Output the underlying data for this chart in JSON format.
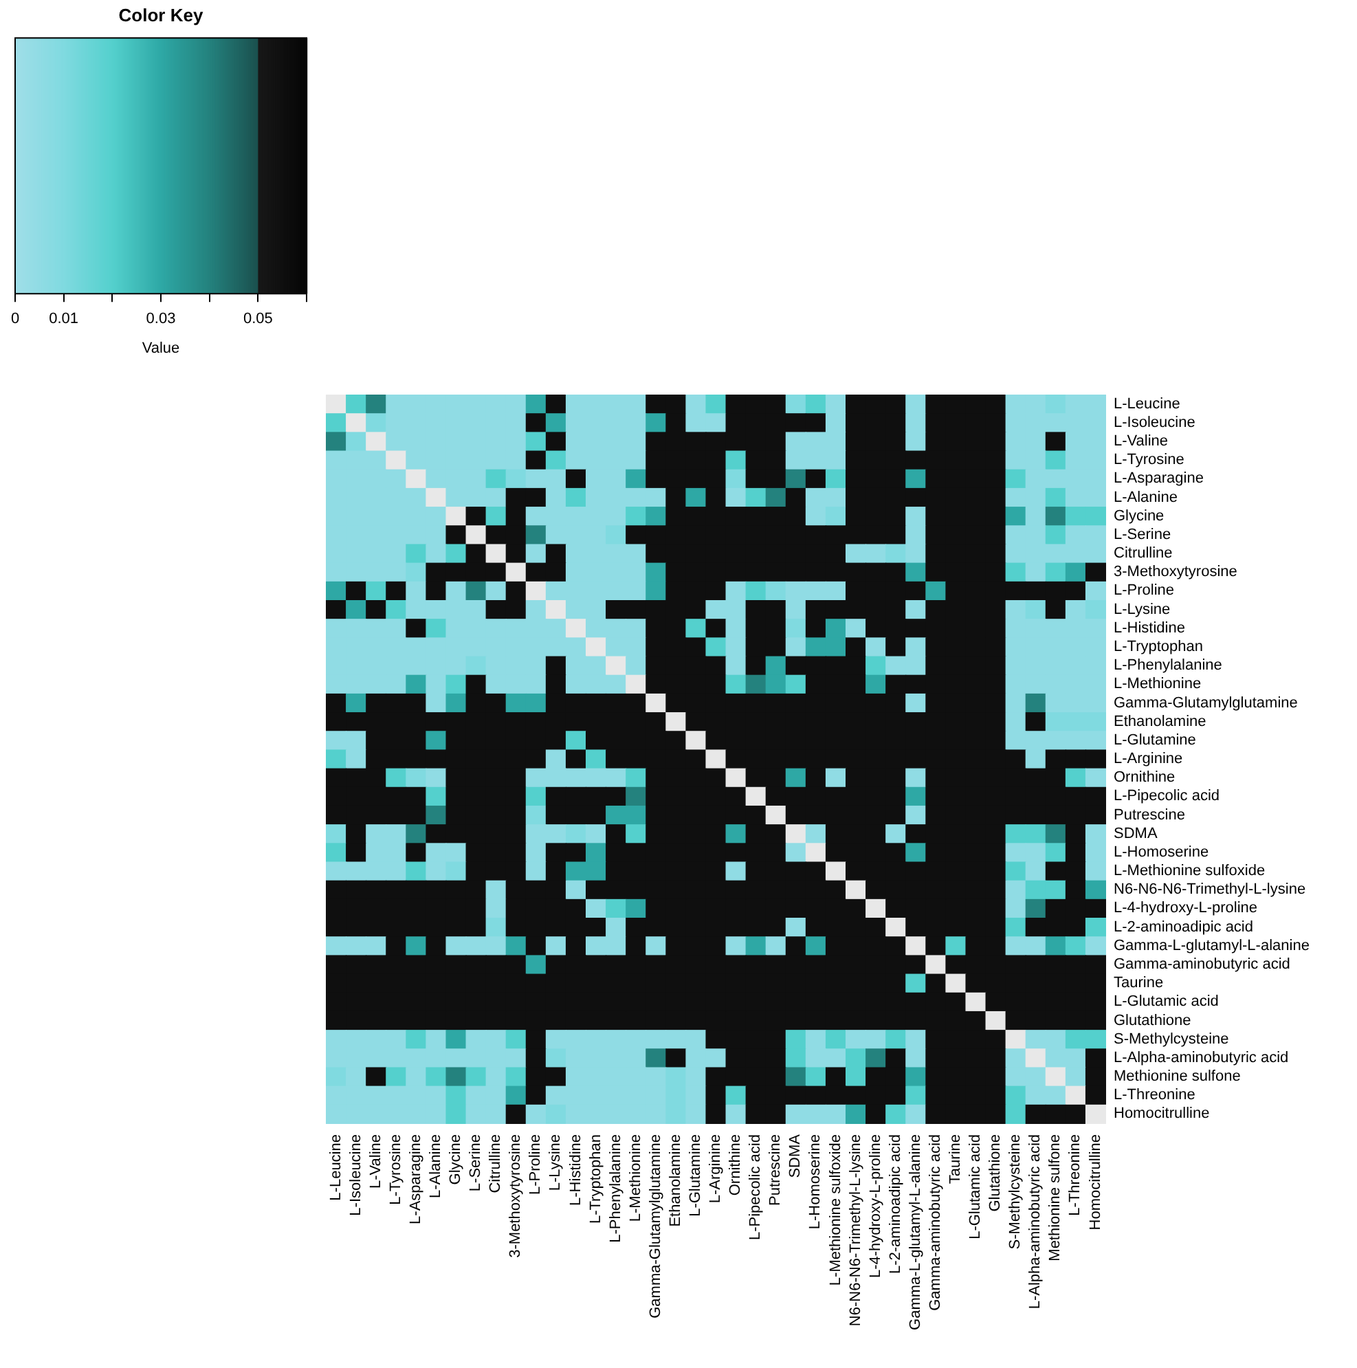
{
  "chart_data": {
    "type": "heatmap",
    "legend_title": "Color Key",
    "clabel": "Value",
    "clim": [
      0,
      0.06
    ],
    "cticks": [
      0,
      0.01,
      {
        "value": 0.02,
        "label": null
      },
      0.03,
      {
        "value": 0.04,
        "label": null
      },
      0.05,
      {
        "value": 0.06,
        "label": null
      }
    ],
    "categories": [
      "L-Leucine",
      "L-Isoleucine",
      "L-Valine",
      "L-Tyrosine",
      "L-Asparagine",
      "L-Alanine",
      "Glycine",
      "L-Serine",
      "Citrulline",
      "3-Methoxytyrosine",
      "L-Proline",
      "L-Lysine",
      "L-Histidine",
      "L-Tryptophan",
      "L-Phenylalanine",
      "L-Methionine",
      "Gamma-Glutamylglutamine",
      "Ethanolamine",
      "L-Glutamine",
      "L-Arginine",
      "Ornithine",
      "L-Pipecolic acid",
      "Putrescine",
      "SDMA",
      "L-Homoserine",
      "L-Methionine sulfoxide",
      "N6-N6-N6-Trimethyl-L-lysine",
      "L-4-hydroxy-L-proline",
      "L-2-aminoadipic acid",
      "Gamma-L-glutamyl-L-alanine",
      "Gamma-aminobutyric acid",
      "Taurine",
      "L-Glutamic acid",
      "Glutathione",
      "S-Methylcysteine",
      "L-Alpha-aminobutyric acid",
      "Methionine sulfone",
      "L-Threonine",
      "Homocitrulline"
    ],
    "y_categories": [
      "L-Leucine",
      "L-Isoleucine",
      "L-Valine",
      "L-Tyrosine",
      "L-Asparagine",
      "L-Alanine",
      "Glycine",
      "L-Serine",
      "Citrulline",
      "3-Methoxytyrosine",
      "L-Proline",
      "L-Lysine",
      "L-Histidine",
      "L-Tryptophan",
      "L-Phenylalanine",
      "L-Methionine",
      "Gamma-Glutamylglutamine",
      "Ethanolamine",
      "L-Glutamine",
      "L-Arginine",
      "Ornithine",
      "L-Pipecolic acid",
      "Putrescine",
      "SDMA",
      "L-Homoserine",
      "L-Methionine sulfoxide",
      "N6-N6-N6-Trimethyl-L-lysine",
      "L-4-hydroxy-L-proline",
      "L-2-aminoadipic acid",
      "Gamma-L-glutamyl-L-alanine",
      "Gamma-aminobutyric acid",
      "Taurine",
      "L-Glutamic acid",
      "Glutathione",
      "S-Methylcysteine",
      "L-Alpha-aminobutyric acid",
      "Methionine sulfone",
      "L-Threonine",
      "Homocitrulline"
    ],
    "cells": [
      [
        null,
        0.02,
        0.04,
        0.005,
        0.005,
        0.005,
        0.005,
        0.005,
        0.005,
        0.005,
        0.03,
        0.055,
        0.005,
        0.005,
        0.005,
        0.005,
        0.055,
        0.055,
        0.005,
        0.02,
        0.055,
        0.055,
        0.055,
        0.01,
        0.02,
        0.005,
        0.055,
        0.055,
        0.055,
        0.005,
        0.055,
        0.055,
        0.055,
        0.055,
        0.005,
        0.005,
        0.01,
        0.005,
        0.005
      ],
      [
        0.02,
        null,
        0.01,
        0.005,
        0.005,
        0.005,
        0.005,
        0.005,
        0.005,
        0.005,
        0.055,
        0.03,
        0.005,
        0.005,
        0.005,
        0.005,
        0.03,
        0.055,
        0.005,
        0.005,
        0.055,
        0.055,
        0.055,
        0.055,
        0.055,
        0.005,
        0.055,
        0.055,
        0.055,
        0.005,
        0.055,
        0.055,
        0.055,
        0.055,
        0.005,
        0.005,
        0.005,
        0.005,
        0.005
      ],
      [
        0.04,
        0.01,
        null,
        0.005,
        0.005,
        0.005,
        0.005,
        0.005,
        0.005,
        0.005,
        0.02,
        0.055,
        0.005,
        0.005,
        0.005,
        0.005,
        0.055,
        0.055,
        0.055,
        0.055,
        0.055,
        0.055,
        0.055,
        0.005,
        0.005,
        0.005,
        0.055,
        0.055,
        0.055,
        0.005,
        0.055,
        0.055,
        0.055,
        0.055,
        0.005,
        0.005,
        0.055,
        0.005,
        0.005
      ],
      [
        0.005,
        0.005,
        0.005,
        null,
        0.005,
        0.005,
        0.005,
        0.005,
        0.005,
        0.005,
        0.055,
        0.02,
        0.005,
        0.005,
        0.005,
        0.005,
        0.055,
        0.055,
        0.055,
        0.055,
        0.02,
        0.055,
        0.055,
        0.005,
        0.005,
        0.005,
        0.055,
        0.055,
        0.055,
        0.055,
        0.055,
        0.055,
        0.055,
        0.055,
        0.005,
        0.005,
        0.02,
        0.005,
        0.005
      ],
      [
        0.005,
        0.005,
        0.005,
        0.005,
        null,
        0.005,
        0.005,
        0.005,
        0.02,
        0.01,
        0.005,
        0.005,
        0.055,
        0.005,
        0.005,
        0.03,
        0.055,
        0.055,
        0.055,
        0.055,
        0.01,
        0.055,
        0.055,
        0.04,
        0.055,
        0.02,
        0.055,
        0.055,
        0.055,
        0.03,
        0.055,
        0.055,
        0.055,
        0.055,
        0.02,
        0.005,
        0.005,
        0.005,
        0.005
      ],
      [
        0.005,
        0.005,
        0.005,
        0.005,
        0.005,
        null,
        0.005,
        0.005,
        0.005,
        0.055,
        0.055,
        0.005,
        0.02,
        0.005,
        0.005,
        0.005,
        0.005,
        0.055,
        0.03,
        0.055,
        0.005,
        0.02,
        0.04,
        0.055,
        0.005,
        0.005,
        0.055,
        0.055,
        0.055,
        0.055,
        0.055,
        0.055,
        0.055,
        0.055,
        0.005,
        0.005,
        0.02,
        0.005,
        0.005
      ],
      [
        0.005,
        0.005,
        0.005,
        0.005,
        0.005,
        0.005,
        null,
        0.055,
        0.02,
        0.055,
        0.005,
        0.005,
        0.005,
        0.005,
        0.005,
        0.02,
        0.03,
        0.055,
        0.055,
        0.055,
        0.055,
        0.055,
        0.055,
        0.055,
        0.005,
        0.01,
        0.055,
        0.055,
        0.055,
        0.005,
        0.055,
        0.055,
        0.055,
        0.055,
        0.03,
        0.005,
        0.04,
        0.02,
        0.02
      ],
      [
        0.005,
        0.005,
        0.005,
        0.005,
        0.005,
        0.005,
        0.055,
        null,
        0.055,
        0.055,
        0.04,
        0.005,
        0.005,
        0.005,
        0.01,
        0.055,
        0.055,
        0.055,
        0.055,
        0.055,
        0.055,
        0.055,
        0.055,
        0.055,
        0.055,
        0.055,
        0.055,
        0.055,
        0.055,
        0.005,
        0.055,
        0.055,
        0.055,
        0.055,
        0.005,
        0.005,
        0.02,
        0.005,
        0.005
      ],
      [
        0.005,
        0.005,
        0.005,
        0.005,
        0.02,
        0.005,
        0.02,
        0.055,
        null,
        0.055,
        0.005,
        0.055,
        0.005,
        0.005,
        0.005,
        0.005,
        0.055,
        0.055,
        0.055,
        0.055,
        0.055,
        0.055,
        0.055,
        0.055,
        0.055,
        0.055,
        0.005,
        0.005,
        0.01,
        0.005,
        0.055,
        0.055,
        0.055,
        0.055,
        0.005,
        0.005,
        0.005,
        0.005,
        0.005
      ],
      [
        0.005,
        0.005,
        0.005,
        0.005,
        0.01,
        0.055,
        0.055,
        0.055,
        0.055,
        null,
        0.055,
        0.055,
        0.005,
        0.005,
        0.005,
        0.005,
        0.03,
        0.055,
        0.055,
        0.055,
        0.055,
        0.055,
        0.055,
        0.055,
        0.055,
        0.055,
        0.055,
        0.055,
        0.055,
        0.03,
        0.055,
        0.055,
        0.055,
        0.055,
        0.02,
        0.005,
        0.02,
        0.03,
        0.055
      ],
      [
        0.03,
        0.055,
        0.02,
        0.055,
        0.005,
        0.055,
        0.005,
        0.04,
        0.005,
        0.055,
        null,
        0.005,
        0.005,
        0.005,
        0.005,
        0.005,
        0.03,
        0.055,
        0.055,
        0.055,
        0.005,
        0.02,
        0.01,
        0.005,
        0.005,
        0.005,
        0.055,
        0.055,
        0.055,
        0.055,
        0.03,
        0.055,
        0.055,
        0.055,
        0.055,
        0.055,
        0.055,
        0.055,
        0.005
      ],
      [
        0.055,
        0.03,
        0.055,
        0.02,
        0.005,
        0.005,
        0.005,
        0.005,
        0.055,
        0.055,
        0.005,
        null,
        0.005,
        0.005,
        0.055,
        0.055,
        0.055,
        0.055,
        0.055,
        0.005,
        0.005,
        0.055,
        0.055,
        0.005,
        0.055,
        0.055,
        0.055,
        0.055,
        0.055,
        0.005,
        0.055,
        0.055,
        0.055,
        0.055,
        0.005,
        0.01,
        0.055,
        0.005,
        0.01
      ],
      [
        0.005,
        0.005,
        0.005,
        0.005,
        0.055,
        0.02,
        0.005,
        0.005,
        0.005,
        0.005,
        0.005,
        0.005,
        null,
        0.005,
        0.005,
        0.005,
        0.055,
        0.055,
        0.02,
        0.055,
        0.005,
        0.055,
        0.055,
        0.01,
        0.055,
        0.03,
        0.005,
        0.055,
        0.055,
        0.055,
        0.055,
        0.055,
        0.055,
        0.055,
        0.005,
        0.005,
        0.005,
        0.005,
        0.005
      ],
      [
        0.005,
        0.005,
        0.005,
        0.005,
        0.005,
        0.005,
        0.005,
        0.005,
        0.005,
        0.005,
        0.005,
        0.005,
        0.005,
        null,
        0.005,
        0.005,
        0.055,
        0.055,
        0.055,
        0.02,
        0.005,
        0.055,
        0.055,
        0.005,
        0.03,
        0.03,
        0.055,
        0.005,
        0.055,
        0.005,
        0.055,
        0.055,
        0.055,
        0.055,
        0.005,
        0.005,
        0.005,
        0.005,
        0.005
      ],
      [
        0.005,
        0.005,
        0.005,
        0.005,
        0.005,
        0.005,
        0.005,
        0.01,
        0.005,
        0.005,
        0.005,
        0.055,
        0.005,
        0.005,
        null,
        0.005,
        0.055,
        0.055,
        0.055,
        0.055,
        0.005,
        0.055,
        0.03,
        0.055,
        0.055,
        0.055,
        0.055,
        0.02,
        0.005,
        0.005,
        0.055,
        0.055,
        0.055,
        0.055,
        0.005,
        0.005,
        0.005,
        0.005,
        0.005
      ],
      [
        0.005,
        0.005,
        0.005,
        0.005,
        0.03,
        0.005,
        0.02,
        0.055,
        0.005,
        0.005,
        0.005,
        0.055,
        0.005,
        0.005,
        0.005,
        null,
        0.055,
        0.055,
        0.055,
        0.055,
        0.02,
        0.04,
        0.03,
        0.02,
        0.055,
        0.055,
        0.055,
        0.03,
        0.055,
        0.055,
        0.055,
        0.055,
        0.055,
        0.055,
        0.005,
        0.005,
        0.005,
        0.005,
        0.005
      ],
      [
        0.055,
        0.03,
        0.055,
        0.055,
        0.055,
        0.005,
        0.03,
        0.055,
        0.055,
        0.03,
        0.03,
        0.055,
        0.055,
        0.055,
        0.055,
        0.055,
        null,
        0.055,
        0.055,
        0.055,
        0.055,
        0.055,
        0.055,
        0.055,
        0.055,
        0.055,
        0.055,
        0.055,
        0.055,
        0.005,
        0.055,
        0.055,
        0.055,
        0.055,
        0.005,
        0.04,
        0.005,
        0.005,
        0.005
      ],
      [
        0.055,
        0.055,
        0.055,
        0.055,
        0.055,
        0.055,
        0.055,
        0.055,
        0.055,
        0.055,
        0.055,
        0.055,
        0.055,
        0.055,
        0.055,
        0.055,
        0.055,
        null,
        0.055,
        0.055,
        0.055,
        0.055,
        0.055,
        0.055,
        0.055,
        0.055,
        0.055,
        0.055,
        0.055,
        0.055,
        0.055,
        0.055,
        0.055,
        0.055,
        0.005,
        0.055,
        0.01,
        0.01,
        0.01
      ],
      [
        0.005,
        0.005,
        0.055,
        0.055,
        0.055,
        0.03,
        0.055,
        0.055,
        0.055,
        0.055,
        0.055,
        0.055,
        0.02,
        0.055,
        0.055,
        0.055,
        0.055,
        0.055,
        null,
        0.055,
        0.055,
        0.055,
        0.055,
        0.055,
        0.055,
        0.055,
        0.055,
        0.055,
        0.055,
        0.055,
        0.055,
        0.055,
        0.055,
        0.055,
        0.005,
        0.005,
        0.005,
        0.005,
        0.005
      ],
      [
        0.02,
        0.005,
        0.055,
        0.055,
        0.055,
        0.055,
        0.055,
        0.055,
        0.055,
        0.055,
        0.055,
        0.005,
        0.055,
        0.02,
        0.055,
        0.055,
        0.055,
        0.055,
        0.055,
        null,
        0.055,
        0.055,
        0.055,
        0.055,
        0.055,
        0.055,
        0.055,
        0.055,
        0.055,
        0.055,
        0.055,
        0.055,
        0.055,
        0.055,
        0.055,
        0.005,
        0.055,
        0.055,
        0.055
      ],
      [
        0.055,
        0.055,
        0.055,
        0.02,
        0.01,
        0.005,
        0.055,
        0.055,
        0.055,
        0.055,
        0.005,
        0.005,
        0.005,
        0.005,
        0.005,
        0.02,
        0.055,
        0.055,
        0.055,
        0.055,
        null,
        0.055,
        0.055,
        0.03,
        0.055,
        0.005,
        0.055,
        0.055,
        0.055,
        0.005,
        0.055,
        0.055,
        0.055,
        0.055,
        0.055,
        0.055,
        0.055,
        0.02,
        0.005
      ],
      [
        0.055,
        0.055,
        0.055,
        0.055,
        0.055,
        0.02,
        0.055,
        0.055,
        0.055,
        0.055,
        0.02,
        0.055,
        0.055,
        0.055,
        0.055,
        0.04,
        0.055,
        0.055,
        0.055,
        0.055,
        0.055,
        null,
        0.055,
        0.055,
        0.055,
        0.055,
        0.055,
        0.055,
        0.055,
        0.03,
        0.055,
        0.055,
        0.055,
        0.055,
        0.055,
        0.055,
        0.055,
        0.055,
        0.055
      ],
      [
        0.055,
        0.055,
        0.055,
        0.055,
        0.055,
        0.04,
        0.055,
        0.055,
        0.055,
        0.055,
        0.01,
        0.055,
        0.055,
        0.055,
        0.03,
        0.03,
        0.055,
        0.055,
        0.055,
        0.055,
        0.055,
        0.055,
        null,
        0.055,
        0.055,
        0.055,
        0.055,
        0.055,
        0.055,
        0.005,
        0.055,
        0.055,
        0.055,
        0.055,
        0.055,
        0.055,
        0.055,
        0.055,
        0.055
      ],
      [
        0.01,
        0.055,
        0.005,
        0.005,
        0.04,
        0.055,
        0.055,
        0.055,
        0.055,
        0.055,
        0.005,
        0.005,
        0.01,
        0.005,
        0.055,
        0.02,
        0.055,
        0.055,
        0.055,
        0.055,
        0.03,
        0.055,
        0.055,
        null,
        0.005,
        0.055,
        0.055,
        0.055,
        0.005,
        0.055,
        0.055,
        0.055,
        0.055,
        0.055,
        0.02,
        0.02,
        0.04,
        0.055,
        0.005
      ],
      [
        0.02,
        0.055,
        0.005,
        0.005,
        0.055,
        0.005,
        0.005,
        0.055,
        0.055,
        0.055,
        0.005,
        0.055,
        0.055,
        0.03,
        0.055,
        0.055,
        0.055,
        0.055,
        0.055,
        0.055,
        0.055,
        0.055,
        0.055,
        0.005,
        null,
        0.055,
        0.055,
        0.055,
        0.055,
        0.03,
        0.055,
        0.055,
        0.055,
        0.055,
        0.005,
        0.005,
        0.02,
        0.055,
        0.005
      ],
      [
        0.005,
        0.005,
        0.005,
        0.005,
        0.02,
        0.005,
        0.01,
        0.055,
        0.055,
        0.055,
        0.005,
        0.055,
        0.03,
        0.03,
        0.055,
        0.055,
        0.055,
        0.055,
        0.055,
        0.055,
        0.005,
        0.055,
        0.055,
        0.055,
        0.055,
        null,
        0.055,
        0.055,
        0.055,
        0.055,
        0.055,
        0.055,
        0.055,
        0.055,
        0.02,
        0.005,
        0.055,
        0.055,
        0.005
      ],
      [
        0.055,
        0.055,
        0.055,
        0.055,
        0.055,
        0.055,
        0.055,
        0.055,
        0.005,
        0.055,
        0.055,
        0.055,
        0.005,
        0.055,
        0.055,
        0.055,
        0.055,
        0.055,
        0.055,
        0.055,
        0.055,
        0.055,
        0.055,
        0.055,
        0.055,
        0.055,
        null,
        0.055,
        0.055,
        0.055,
        0.055,
        0.055,
        0.055,
        0.055,
        0.005,
        0.02,
        0.02,
        0.055,
        0.03
      ],
      [
        0.055,
        0.055,
        0.055,
        0.055,
        0.055,
        0.055,
        0.055,
        0.055,
        0.005,
        0.055,
        0.055,
        0.055,
        0.055,
        0.005,
        0.02,
        0.03,
        0.055,
        0.055,
        0.055,
        0.055,
        0.055,
        0.055,
        0.055,
        0.055,
        0.055,
        0.055,
        0.055,
        null,
        0.055,
        0.055,
        0.055,
        0.055,
        0.055,
        0.055,
        0.005,
        0.04,
        0.055,
        0.055,
        0.055
      ],
      [
        0.055,
        0.055,
        0.055,
        0.055,
        0.055,
        0.055,
        0.055,
        0.055,
        0.01,
        0.055,
        0.055,
        0.055,
        0.055,
        0.055,
        0.005,
        0.055,
        0.055,
        0.055,
        0.055,
        0.055,
        0.055,
        0.055,
        0.055,
        0.005,
        0.055,
        0.055,
        0.055,
        0.055,
        null,
        0.055,
        0.055,
        0.055,
        0.055,
        0.055,
        0.02,
        0.055,
        0.055,
        0.055,
        0.02
      ],
      [
        0.005,
        0.005,
        0.005,
        0.055,
        0.03,
        0.055,
        0.005,
        0.005,
        0.005,
        0.03,
        0.055,
        0.005,
        0.055,
        0.005,
        0.005,
        0.055,
        0.005,
        0.055,
        0.055,
        0.055,
        0.005,
        0.03,
        0.005,
        0.055,
        0.03,
        0.055,
        0.055,
        0.055,
        0.055,
        null,
        0.055,
        0.02,
        0.055,
        0.055,
        0.005,
        0.005,
        0.03,
        0.02,
        0.005
      ],
      [
        0.055,
        0.055,
        0.055,
        0.055,
        0.055,
        0.055,
        0.055,
        0.055,
        0.055,
        0.055,
        0.03,
        0.055,
        0.055,
        0.055,
        0.055,
        0.055,
        0.055,
        0.055,
        0.055,
        0.055,
        0.055,
        0.055,
        0.055,
        0.055,
        0.055,
        0.055,
        0.055,
        0.055,
        0.055,
        0.055,
        null,
        0.055,
        0.055,
        0.055,
        0.055,
        0.055,
        0.055,
        0.055,
        0.055
      ],
      [
        0.055,
        0.055,
        0.055,
        0.055,
        0.055,
        0.055,
        0.055,
        0.055,
        0.055,
        0.055,
        0.055,
        0.055,
        0.055,
        0.055,
        0.055,
        0.055,
        0.055,
        0.055,
        0.055,
        0.055,
        0.055,
        0.055,
        0.055,
        0.055,
        0.055,
        0.055,
        0.055,
        0.055,
        0.055,
        0.02,
        0.055,
        null,
        0.055,
        0.055,
        0.055,
        0.055,
        0.055,
        0.055,
        0.055
      ],
      [
        0.055,
        0.055,
        0.055,
        0.055,
        0.055,
        0.055,
        0.055,
        0.055,
        0.055,
        0.055,
        0.055,
        0.055,
        0.055,
        0.055,
        0.055,
        0.055,
        0.055,
        0.055,
        0.055,
        0.055,
        0.055,
        0.055,
        0.055,
        0.055,
        0.055,
        0.055,
        0.055,
        0.055,
        0.055,
        0.055,
        0.055,
        0.055,
        null,
        0.055,
        0.055,
        0.055,
        0.055,
        0.055,
        0.055
      ],
      [
        0.055,
        0.055,
        0.055,
        0.055,
        0.055,
        0.055,
        0.055,
        0.055,
        0.055,
        0.055,
        0.055,
        0.055,
        0.055,
        0.055,
        0.055,
        0.055,
        0.055,
        0.055,
        0.055,
        0.055,
        0.055,
        0.055,
        0.055,
        0.055,
        0.055,
        0.055,
        0.055,
        0.055,
        0.055,
        0.055,
        0.055,
        0.055,
        0.055,
        null,
        0.055,
        0.055,
        0.055,
        0.055,
        0.055
      ],
      [
        0.005,
        0.005,
        0.005,
        0.005,
        0.02,
        0.005,
        0.03,
        0.005,
        0.005,
        0.02,
        0.055,
        0.005,
        0.005,
        0.005,
        0.005,
        0.005,
        0.005,
        0.005,
        0.005,
        0.055,
        0.055,
        0.055,
        0.055,
        0.02,
        0.005,
        0.02,
        0.005,
        0.005,
        0.02,
        0.005,
        0.055,
        0.055,
        0.055,
        0.055,
        null,
        0.005,
        0.005,
        0.02,
        0.02
      ],
      [
        0.005,
        0.005,
        0.005,
        0.005,
        0.005,
        0.005,
        0.005,
        0.005,
        0.005,
        0.005,
        0.055,
        0.01,
        0.005,
        0.005,
        0.005,
        0.005,
        0.04,
        0.055,
        0.005,
        0.005,
        0.055,
        0.055,
        0.055,
        0.02,
        0.005,
        0.005,
        0.02,
        0.04,
        0.055,
        0.005,
        0.055,
        0.055,
        0.055,
        0.055,
        0.005,
        null,
        0.005,
        0.005,
        0.055
      ],
      [
        0.01,
        0.005,
        0.055,
        0.02,
        0.005,
        0.02,
        0.04,
        0.02,
        0.005,
        0.02,
        0.055,
        0.055,
        0.005,
        0.005,
        0.005,
        0.005,
        0.005,
        0.01,
        0.005,
        0.055,
        0.055,
        0.055,
        0.055,
        0.04,
        0.02,
        0.055,
        0.02,
        0.055,
        0.055,
        0.03,
        0.055,
        0.055,
        0.055,
        0.055,
        0.005,
        0.005,
        null,
        0.005,
        0.055
      ],
      [
        0.005,
        0.005,
        0.005,
        0.005,
        0.005,
        0.005,
        0.02,
        0.005,
        0.005,
        0.03,
        0.055,
        0.005,
        0.005,
        0.005,
        0.005,
        0.005,
        0.005,
        0.01,
        0.005,
        0.055,
        0.02,
        0.055,
        0.055,
        0.055,
        0.055,
        0.055,
        0.055,
        0.055,
        0.055,
        0.02,
        0.055,
        0.055,
        0.055,
        0.055,
        0.02,
        0.005,
        0.005,
        null,
        0.055
      ],
      [
        0.005,
        0.005,
        0.005,
        0.005,
        0.005,
        0.005,
        0.02,
        0.005,
        0.005,
        0.055,
        0.005,
        0.01,
        0.005,
        0.005,
        0.005,
        0.005,
        0.005,
        0.01,
        0.005,
        0.055,
        0.005,
        0.055,
        0.055,
        0.005,
        0.005,
        0.005,
        0.03,
        0.055,
        0.02,
        0.005,
        0.055,
        0.055,
        0.055,
        0.055,
        0.02,
        0.055,
        0.055,
        0.055,
        null
      ]
    ]
  }
}
